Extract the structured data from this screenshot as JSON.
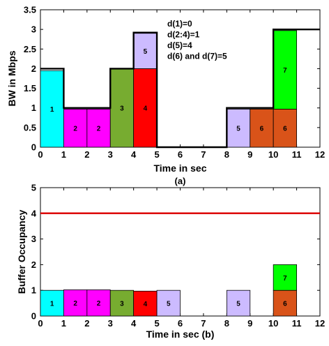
{
  "chart_data": [
    {
      "type": "bar",
      "panel": "a",
      "subtitle": "(a)",
      "xlabel": "Time in sec",
      "ylabel": "BW in Mbps",
      "xlim": [
        0,
        12
      ],
      "ylim": [
        0,
        3.5
      ],
      "xticks": [
        "0",
        "1",
        "2",
        "3",
        "4",
        "5",
        "6",
        "7",
        "8",
        "9",
        "10",
        "11",
        "12"
      ],
      "yticks": [
        "0",
        "0.5",
        "1",
        "1.5",
        "2",
        "2.5",
        "3",
        "3.5"
      ],
      "annotations": [
        "d(1)=0",
        "d(2:4)=1",
        "d(5)=4",
        "d(6) and d(7)=5"
      ],
      "segments": [
        {
          "label": "1",
          "x0": 0,
          "x1": 1,
          "y0": 0,
          "y1": 1.95,
          "color": "#00ffff"
        },
        {
          "label": "2",
          "x0": 1,
          "x1": 2,
          "y0": 0,
          "y1": 0.97,
          "color": "#ff00ff"
        },
        {
          "label": "2",
          "x0": 2,
          "x1": 3,
          "y0": 0,
          "y1": 0.97,
          "color": "#ff00ff"
        },
        {
          "label": "3",
          "x0": 3,
          "x1": 4,
          "y0": 0,
          "y1": 2.0,
          "color": "#77ac30"
        },
        {
          "label": "4",
          "x0": 4,
          "x1": 5,
          "y0": 0,
          "y1": 2.0,
          "color": "#ff0000"
        },
        {
          "label": "5",
          "x0": 4,
          "x1": 5,
          "y0": 2.0,
          "y1": 2.9,
          "color": "#ccbbff"
        },
        {
          "label": "5",
          "x0": 8,
          "x1": 9,
          "y0": 0,
          "y1": 0.97,
          "color": "#ccbbff"
        },
        {
          "label": "6",
          "x0": 9,
          "x1": 10,
          "y0": 0,
          "y1": 0.97,
          "color": "#d95319"
        },
        {
          "label": "6",
          "x0": 10,
          "x1": 11,
          "y0": 0,
          "y1": 0.97,
          "color": "#d95319"
        },
        {
          "label": "7",
          "x0": 10,
          "x1": 11,
          "y0": 0.97,
          "y1": 2.97,
          "color": "#00ff00"
        }
      ],
      "bw_line": [
        [
          0,
          2
        ],
        [
          1,
          2
        ],
        [
          1,
          1
        ],
        [
          3,
          1
        ],
        [
          3,
          2
        ],
        [
          4,
          2
        ],
        [
          4,
          2.92
        ],
        [
          5,
          2.92
        ],
        [
          5,
          0
        ],
        [
          8,
          0
        ],
        [
          8,
          1
        ],
        [
          10,
          1
        ],
        [
          10,
          3
        ],
        [
          12,
          3
        ]
      ]
    },
    {
      "type": "bar",
      "panel": "b",
      "xlabel": "Time in sec (b)",
      "ylabel": "Buffer Occupancy",
      "xlim": [
        0,
        12
      ],
      "ylim": [
        0,
        5
      ],
      "xticks": [
        "0",
        "1",
        "2",
        "3",
        "4",
        "5",
        "6",
        "7",
        "8",
        "9",
        "10",
        "11",
        "12"
      ],
      "yticks": [
        "0",
        "1",
        "2",
        "3",
        "4",
        "5"
      ],
      "threshold": 4,
      "threshold_color": "#dd0000",
      "segments": [
        {
          "label": "1",
          "x0": 0,
          "x1": 1,
          "y0": 0,
          "y1": 1.0,
          "color": "#00ffff"
        },
        {
          "label": "2",
          "x0": 1,
          "x1": 2,
          "y0": 0,
          "y1": 1.02,
          "color": "#ff00ff"
        },
        {
          "label": "2",
          "x0": 2,
          "x1": 3,
          "y0": 0,
          "y1": 1.02,
          "color": "#ff00ff"
        },
        {
          "label": "3",
          "x0": 3,
          "x1": 4,
          "y0": 0,
          "y1": 1.0,
          "color": "#77ac30"
        },
        {
          "label": "4",
          "x0": 4,
          "x1": 5,
          "y0": 0,
          "y1": 0.97,
          "color": "#ff0000"
        },
        {
          "label": "5",
          "x0": 5,
          "x1": 6,
          "y0": 0,
          "y1": 1.0,
          "color": "#ccbbff"
        },
        {
          "label": "5",
          "x0": 8,
          "x1": 9,
          "y0": 0,
          "y1": 1.0,
          "color": "#ccbbff"
        },
        {
          "label": "6",
          "x0": 10,
          "x1": 11,
          "y0": 0,
          "y1": 1.0,
          "color": "#d95319"
        },
        {
          "label": "7",
          "x0": 10,
          "x1": 11,
          "y0": 1.0,
          "y1": 2.0,
          "color": "#00ff00"
        }
      ]
    }
  ]
}
